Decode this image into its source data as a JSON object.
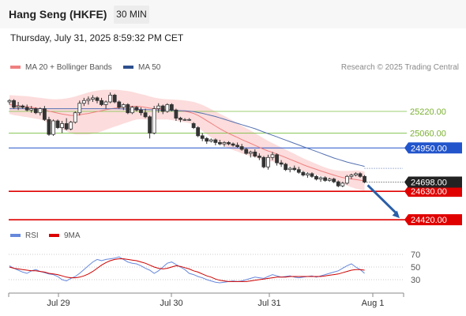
{
  "header": {
    "title": "Hang Seng (HKFE)",
    "timeframe": "30 MIN"
  },
  "datetime": "Thursday, July 31, 2025 8:59:32 PM CET",
  "legend": {
    "ma20": "MA 20 + Bollinger Bands",
    "ma50": "MA 50",
    "rsi": "RSI",
    "ma9": "9MA"
  },
  "credit": "Research © 2025 Trading Central",
  "colors": {
    "candle": "#333333",
    "ma20": "#f08080",
    "band_fill": "#fcdcdc",
    "ma50": "#5470b0",
    "support": "#e00000",
    "pivot": "#2255cc",
    "resistance": "#7ac143",
    "arrow": "#2b5ea8",
    "rsi": "#6688dd",
    "ma9": "#cc0000"
  },
  "chart_data": {
    "type": "candlestick",
    "ylim": [
      24380,
      25430
    ],
    "current_price": "24698.00",
    "levels": [
      {
        "label": "25220.00",
        "value": 25220,
        "kind": "resistance"
      },
      {
        "label": "25060.00",
        "value": 25060,
        "kind": "resistance"
      },
      {
        "label": "24950.00",
        "value": 24950,
        "kind": "pivot"
      },
      {
        "label": "24630.00",
        "value": 24630,
        "kind": "support"
      },
      {
        "label": "24420.00",
        "value": 24420,
        "kind": "support"
      }
    ],
    "x_ticks": [
      "Jul 29",
      "Jul 30",
      "Jul 31",
      "Aug 1"
    ],
    "candles": [
      [
        25290,
        25310,
        25270,
        25300
      ],
      [
        25300,
        25310,
        25240,
        25250
      ],
      [
        25250,
        25290,
        25230,
        25260
      ],
      [
        25260,
        25270,
        25240,
        25250
      ],
      [
        25250,
        25270,
        25220,
        25230
      ],
      [
        25230,
        25260,
        25210,
        25240
      ],
      [
        25240,
        25250,
        25200,
        25210
      ],
      [
        25210,
        25250,
        25190,
        25240
      ],
      [
        25240,
        25260,
        25150,
        25160
      ],
      [
        25160,
        25180,
        25040,
        25050
      ],
      [
        25050,
        25160,
        25040,
        25150
      ],
      [
        25150,
        25160,
        25090,
        25100
      ],
      [
        25100,
        25150,
        25060,
        25130
      ],
      [
        25130,
        25170,
        25080,
        25090
      ],
      [
        25090,
        25150,
        25080,
        25140
      ],
      [
        25140,
        25220,
        25130,
        25210
      ],
      [
        25210,
        25300,
        25190,
        25280
      ],
      [
        25280,
        25320,
        25260,
        25300
      ],
      [
        25300,
        25330,
        25270,
        25310
      ],
      [
        25310,
        25340,
        25290,
        25320
      ],
      [
        25320,
        25330,
        25280,
        25300
      ],
      [
        25300,
        25320,
        25260,
        25270
      ],
      [
        25270,
        25300,
        25240,
        25290
      ],
      [
        25290,
        25360,
        25280,
        25340
      ],
      [
        25340,
        25350,
        25280,
        25290
      ],
      [
        25290,
        25300,
        25240,
        25250
      ],
      [
        25250,
        25280,
        25230,
        25270
      ],
      [
        25270,
        25280,
        25200,
        25210
      ],
      [
        25210,
        25260,
        25200,
        25250
      ],
      [
        25250,
        25260,
        25220,
        25230
      ],
      [
        25230,
        25250,
        25190,
        25210
      ],
      [
        25210,
        25240,
        25170,
        25180
      ],
      [
        25180,
        25190,
        25020,
        25060
      ],
      [
        25060,
        25260,
        25050,
        25240
      ],
      [
        25240,
        25280,
        25210,
        25260
      ],
      [
        25260,
        25270,
        25200,
        25220
      ],
      [
        25220,
        25280,
        25210,
        25270
      ],
      [
        25270,
        25280,
        25220,
        25230
      ],
      [
        25230,
        25240,
        25150,
        25170
      ],
      [
        25170,
        25180,
        25140,
        25160
      ],
      [
        25160,
        25170,
        25150,
        25160
      ],
      [
        25160,
        25170,
        25150,
        25160
      ],
      [
        25130,
        25140,
        25090,
        25100
      ],
      [
        25100,
        25110,
        25030,
        25040
      ],
      [
        25040,
        25060,
        25000,
        25020
      ],
      [
        25020,
        25030,
        24980,
        25000
      ],
      [
        25000,
        25020,
        24990,
        25010
      ],
      [
        25010,
        25020,
        24970,
        24990
      ],
      [
        24990,
        25010,
        24970,
        24980
      ],
      [
        24980,
        25000,
        24960,
        24990
      ],
      [
        24990,
        25000,
        24970,
        24980
      ],
      [
        24980,
        24990,
        24960,
        24970
      ],
      [
        24970,
        24990,
        24950,
        24960
      ],
      [
        24960,
        24980,
        24930,
        24940
      ],
      [
        24940,
        24950,
        24900,
        24910
      ],
      [
        24910,
        24930,
        24880,
        24920
      ],
      [
        24920,
        24940,
        24880,
        24890
      ],
      [
        24890,
        24910,
        24860,
        24880
      ],
      [
        24880,
        24890,
        24800,
        24810
      ],
      [
        24810,
        24900,
        24790,
        24880
      ],
      [
        24880,
        24920,
        24860,
        24900
      ],
      [
        24900,
        24910,
        24820,
        24840
      ],
      [
        24840,
        24860,
        24810,
        24830
      ],
      [
        24830,
        24840,
        24780,
        24790
      ],
      [
        24790,
        24810,
        24770,
        24800
      ],
      [
        24800,
        24820,
        24780,
        24790
      ],
      [
        24790,
        24810,
        24760,
        24770
      ],
      [
        24770,
        24780,
        24740,
        24750
      ],
      [
        24750,
        24770,
        24730,
        24760
      ],
      [
        24760,
        24770,
        24730,
        24740
      ],
      [
        24740,
        24750,
        24710,
        24720
      ],
      [
        24720,
        24740,
        24700,
        24730
      ],
      [
        24730,
        24740,
        24700,
        24710
      ],
      [
        24710,
        24730,
        24700,
        24720
      ],
      [
        24720,
        24730,
        24690,
        24700
      ],
      [
        24700,
        24710,
        24660,
        24670
      ],
      [
        24670,
        24700,
        24660,
        24690
      ],
      [
        24690,
        24750,
        24680,
        24740
      ],
      [
        24740,
        24760,
        24720,
        24750
      ],
      [
        24750,
        24770,
        24740,
        24760
      ],
      [
        24760,
        24770,
        24730,
        24740
      ],
      [
        24740,
        24750,
        24690,
        24698
      ]
    ],
    "ma20": [
      25270,
      25265,
      25262,
      25258,
      25255,
      25250,
      25245,
      25240,
      25232,
      25222,
      25215,
      25208,
      25200,
      25195,
      25190,
      25190,
      25195,
      25200,
      25205,
      25212,
      25218,
      25225,
      25232,
      25238,
      25244,
      25248,
      25252,
      25255,
      25258,
      25258,
      25255,
      25250,
      25244,
      25240,
      25238,
      25236,
      25235,
      25232,
      25228,
      25224,
      25220,
      25215,
      25205,
      25190,
      25172,
      25152,
      25132,
      25112,
      25092,
      25075,
      25058,
      25042,
      25028,
      25012,
      24998,
      24984,
      24970,
      24955,
      24940,
      24928,
      24918,
      24905,
      24892,
      24880,
      24866,
      24853,
      24840,
      24826,
      24814,
      24803,
      24792,
      24780,
      24770,
      24760,
      24750,
      24740,
      24732,
      24726,
      24721,
      24717,
      24712,
      24706
    ],
    "bb_upper": [
      25340,
      25338,
      25336,
      25334,
      25332,
      25328,
      25324,
      25320,
      25316,
      25312,
      25310,
      25310,
      25312,
      25316,
      25322,
      25330,
      25340,
      25350,
      25360,
      25368,
      25374,
      25378,
      25380,
      25380,
      25380,
      25378,
      25374,
      25370,
      25364,
      25356,
      25348,
      25340,
      25330,
      25322,
      25316,
      25312,
      25310,
      25308,
      25306,
      25304,
      25300,
      25296,
      25290,
      25280,
      25268,
      25252,
      25236,
      25220,
      25202,
      25186,
      25168,
      25150,
      25132,
      25114,
      25096,
      25078,
      25060,
      25040,
      25020,
      25002,
      24986,
      24970,
      24954,
      24938,
      24922,
      24906,
      24890,
      24874,
      24860,
      24846,
      24832,
      24818,
      24806,
      24796,
      24788,
      24782,
      24780,
      24780,
      24782,
      24784,
      24782,
      24776
    ],
    "bb_lower": [
      25200,
      25192,
      25188,
      25182,
      25178,
      25172,
      25166,
      25160,
      25148,
      25132,
      25120,
      25106,
      25088,
      25074,
      25058,
      25050,
      25050,
      25050,
      25050,
      25056,
      25062,
      25072,
      25084,
      25096,
      25108,
      25118,
      25130,
      25140,
      25152,
      25160,
      25162,
      25160,
      25158,
      25158,
      25160,
      25160,
      25160,
      25156,
      25150,
      25144,
      25140,
      25134,
      25120,
      25100,
      25076,
      25052,
      25028,
      25004,
      24982,
      24964,
      24948,
      24934,
      24924,
      24910,
      24900,
      24890,
      24880,
      24870,
      24860,
      24854,
      24850,
      24840,
      24830,
      24822,
      24810,
      24800,
      24790,
      24778,
      24768,
      24760,
      24752,
      24742,
      24734,
      24724,
      24712,
      24698,
      24684,
      24672,
      24660,
      24650,
      24642,
      24636
    ],
    "ma50": [
      25240,
      25240,
      25240,
      25240,
      25240,
      25240,
      25240,
      25240,
      25240,
      25240,
      25240,
      25240,
      25240,
      25240,
      25240,
      25240,
      25240,
      25240,
      25240,
      25240,
      25240,
      25240,
      25240,
      25240,
      25240,
      25239,
      25238,
      25237,
      25236,
      25235,
      25234,
      25233,
      25232,
      25231,
      25230,
      25229,
      25228,
      25227,
      25226,
      25225,
      25224,
      25222,
      25218,
      25212,
      25206,
      25198,
      25190,
      25182,
      25172,
      25162,
      25152,
      25142,
      25132,
      25122,
      25112,
      25102,
      25092,
      25080,
      25068,
      25056,
      25044,
      25032,
      25020,
      25008,
      24996,
      24984,
      24972,
      24960,
      24948,
      24936,
      24924,
      24912,
      24900,
      24888,
      24876,
      24866,
      24856,
      24846,
      24838,
      24830,
      24822,
      24814
    ],
    "rsi": {
      "ticks": [
        70,
        50,
        30
      ],
      "ylim": [
        20,
        80
      ],
      "rsi": [
        52,
        48,
        45,
        42,
        40,
        44,
        46,
        43,
        41,
        39,
        38,
        35,
        30,
        28,
        32,
        35,
        40,
        46,
        52,
        58,
        62,
        60,
        62,
        63,
        64,
        66,
        62,
        58,
        56,
        55,
        52,
        48,
        45,
        40,
        44,
        50,
        56,
        58,
        54,
        50,
        46,
        40,
        38,
        35,
        33,
        30,
        28,
        26,
        25,
        26,
        27,
        28,
        27,
        28,
        30,
        32,
        34,
        33,
        32,
        35,
        38,
        36,
        34,
        35,
        36,
        34,
        33,
        34,
        35,
        36,
        34,
        36,
        38,
        40,
        42,
        44,
        48,
        52,
        55,
        50,
        46,
        40
      ],
      "ma9": [
        50,
        48,
        47,
        46,
        45,
        44,
        44,
        43,
        42,
        40,
        39,
        38,
        36,
        34,
        33,
        33,
        34,
        36,
        39,
        43,
        48,
        53,
        57,
        60,
        62,
        63,
        63,
        62,
        61,
        60,
        58,
        56,
        53,
        50,
        48,
        47,
        48,
        50,
        52,
        51,
        49,
        47,
        44,
        42,
        39,
        36,
        34,
        31,
        29,
        28,
        27,
        27,
        27,
        27,
        27,
        28,
        29,
        30,
        31,
        32,
        33,
        34,
        34,
        34,
        35,
        35,
        35,
        35,
        35,
        35,
        35,
        35,
        36,
        37,
        38,
        39,
        41,
        43,
        45,
        46,
        46,
        45
      ]
    }
  }
}
